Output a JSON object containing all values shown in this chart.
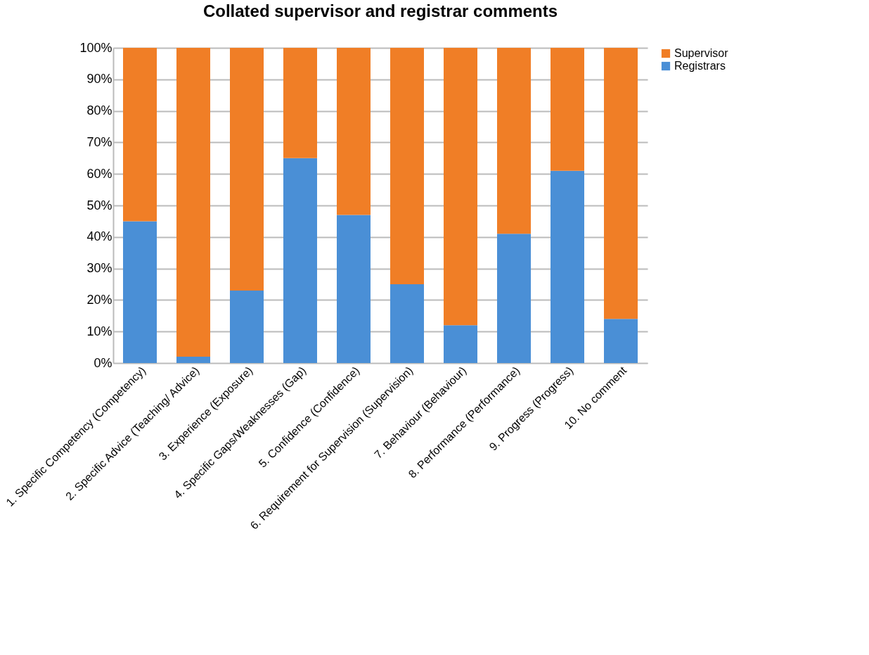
{
  "chart_data": {
    "type": "bar",
    "title": "Collated supervisor and registrar comments",
    "stacked": true,
    "categories": [
      "1. Specific Competency (Competency)",
      "2. Specific Advice (Teaching/ Advice)",
      "3. Experience (Exposure)",
      "4. Specific Gaps/Weaknesses (Gap)",
      "5. Confidence (Confidence)",
      "6. Requirement for Supervision (Supervision)",
      "7. Behaviour (Behaviour)",
      "8. Performance (Performance)",
      "9. Progress (Progress)",
      "10. No comment"
    ],
    "series": [
      {
        "name": "Registrars",
        "color": "#4a8fd6",
        "values": [
          45,
          2,
          23,
          65,
          47,
          25,
          12,
          41,
          61,
          14
        ]
      },
      {
        "name": "Supervisor",
        "color": "#f07e26",
        "values": [
          55,
          98,
          77,
          35,
          53,
          75,
          88,
          59,
          39,
          86
        ]
      }
    ],
    "ylim": [
      0,
      100
    ],
    "yticks": [
      {
        "value": 0,
        "label": "0%"
      },
      {
        "value": 10,
        "label": "10%"
      },
      {
        "value": 20,
        "label": "20%"
      },
      {
        "value": 30,
        "label": "30%"
      },
      {
        "value": 40,
        "label": "40%"
      },
      {
        "value": 50,
        "label": "50%"
      },
      {
        "value": 60,
        "label": "60%"
      },
      {
        "value": 70,
        "label": "70%"
      },
      {
        "value": 80,
        "label": "80%"
      },
      {
        "value": 90,
        "label": "90%"
      },
      {
        "value": 100,
        "label": "100%"
      }
    ],
    "grid": "y",
    "legend": "right"
  }
}
